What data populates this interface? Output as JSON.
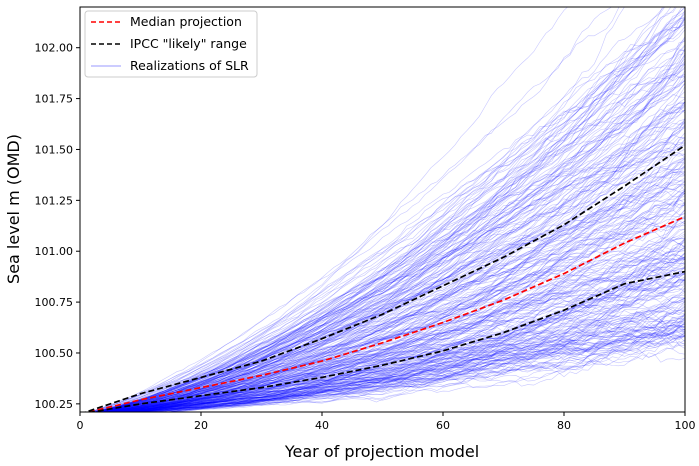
{
  "chart_data": {
    "type": "line",
    "title": "",
    "xlabel": "Year of projection model",
    "ylabel": "Sea level m (OMD)",
    "xlim": [
      0,
      100
    ],
    "ylim": [
      100.21,
      102.2
    ],
    "xticks": [
      0,
      20,
      40,
      60,
      80,
      100
    ],
    "yticks": [
      100.25,
      100.5,
      100.75,
      101.0,
      101.25,
      101.5,
      101.75,
      102.0
    ],
    "ytick_labels": [
      "100.25",
      "100.50",
      "100.75",
      "101.00",
      "101.25",
      "101.50",
      "101.75",
      "102.00"
    ],
    "grid": false,
    "legend": {
      "position": "top-left",
      "entries": [
        {
          "label": "Median projection",
          "color": "#ff0000",
          "style": "dashed"
        },
        {
          "label": "IPCC \"likely\" range",
          "color": "#000000",
          "style": "dashed"
        },
        {
          "label": "Realizations of SLR",
          "color": "#0000ff",
          "style": "thin-solid"
        }
      ]
    },
    "series": [
      {
        "name": "Median projection",
        "color": "#ff0000",
        "x": [
          0,
          10,
          20,
          30,
          40,
          50,
          60,
          70,
          80,
          90,
          100
        ],
        "values": [
          100.2,
          100.27,
          100.33,
          100.39,
          100.46,
          100.55,
          100.65,
          100.76,
          100.89,
          101.04,
          101.17
        ]
      },
      {
        "name": "IPCC \"likely\" range (upper)",
        "color": "#000000",
        "x": [
          0,
          10,
          20,
          30,
          40,
          50,
          60,
          70,
          80,
          90,
          100
        ],
        "values": [
          100.2,
          100.3,
          100.38,
          100.46,
          100.57,
          100.69,
          100.83,
          100.97,
          101.13,
          101.32,
          101.52
        ]
      },
      {
        "name": "IPCC \"likely\" range (lower)",
        "color": "#000000",
        "x": [
          0,
          10,
          20,
          30,
          40,
          50,
          60,
          70,
          80,
          90,
          100
        ],
        "values": [
          100.2,
          100.25,
          100.29,
          100.33,
          100.38,
          100.44,
          100.51,
          100.6,
          100.71,
          100.84,
          100.9
        ]
      }
    ],
    "realizations": {
      "name": "Realizations of SLR",
      "color": "#0000ff",
      "count": 300,
      "x_range": [
        0,
        100
      ],
      "start_value": 100.2,
      "end_range": [
        100.6,
        102.2
      ]
    }
  }
}
